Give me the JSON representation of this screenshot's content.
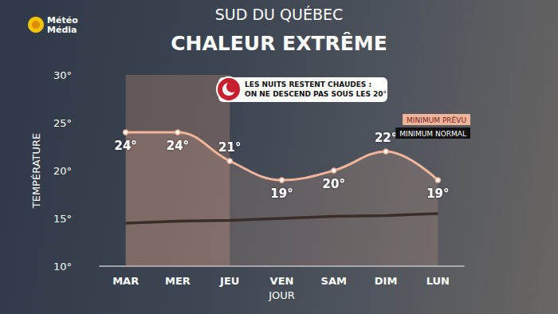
{
  "chart_data": {
    "type": "line",
    "logo": [
      "Météo",
      "Média"
    ],
    "subtitle": "SUD DU QUÉBEC",
    "title": "CHALEUR EXTRÊME",
    "annotation": [
      "LES NUITS RESTENT CHAUDES :",
      "ON NE DESCEND PAS SOUS LES 20°"
    ],
    "x_label": "JOUR",
    "y_label": "TEMPÉRATURE",
    "categories": [
      "MAR",
      "MER",
      "JEU",
      "VEN",
      "SAM",
      "DIM",
      "LUN"
    ],
    "shaded_categories": [
      "MAR",
      "MER",
      "JEU"
    ],
    "series": [
      {
        "name": "MINIMUM PRÉVU",
        "color": "#f2b59c",
        "marker": "circle",
        "line_style": "solid",
        "values": [
          24,
          24,
          21,
          19,
          20,
          22,
          19
        ],
        "value_labels": [
          "24°",
          "24°",
          "21°",
          "19°",
          "20°",
          "22°",
          "19°"
        ]
      },
      {
        "name": "MINIMUM NORMAL",
        "color": "#111111",
        "marker": "none",
        "line_style": "solid",
        "values": [
          14.5,
          14.7,
          14.8,
          15.0,
          15.2,
          15.3,
          15.5
        ]
      }
    ],
    "ylim": [
      10,
      30
    ],
    "yticks": [
      {
        "value": 10,
        "label": "10°"
      },
      {
        "value": 15,
        "label": "15°"
      },
      {
        "value": 20,
        "label": "20°"
      },
      {
        "value": 25,
        "label": "25°"
      },
      {
        "value": 30,
        "label": "30°"
      }
    ],
    "grid": false,
    "legend": "upper right",
    "data_labels": true
  }
}
